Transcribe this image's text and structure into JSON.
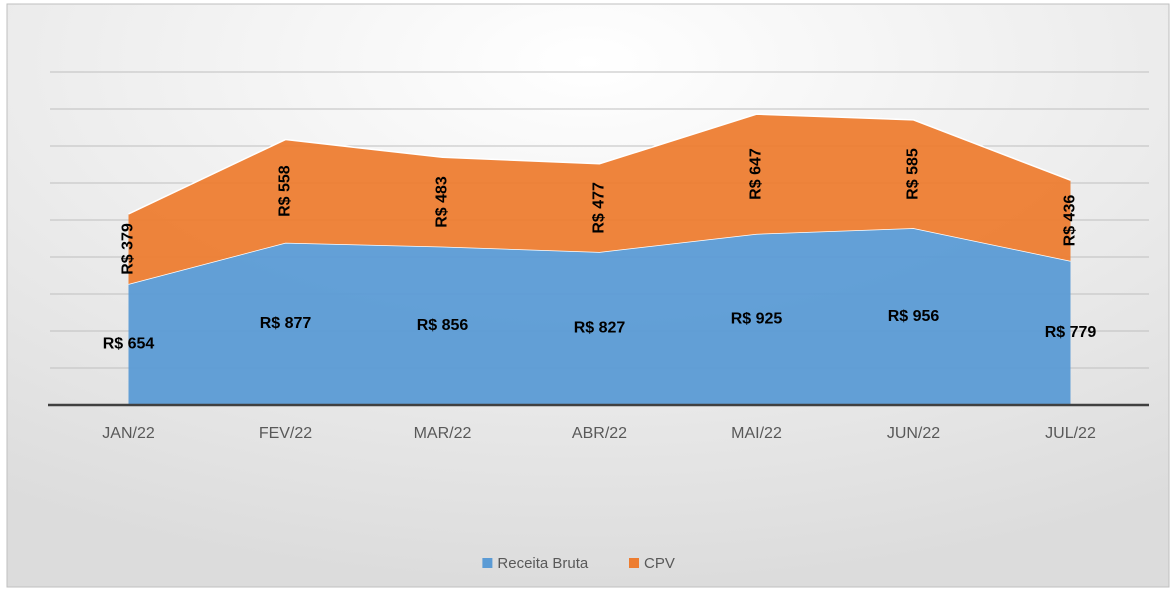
{
  "chart_data": {
    "type": "stacked_area",
    "categories": [
      "JAN/22",
      "FEV/22",
      "MAR/22",
      "ABR/22",
      "MAI/22",
      "JUN/22",
      "JUL/22"
    ],
    "series": [
      {
        "name": "Receita Bruta",
        "color": "#5b9bd5",
        "values": [
          654,
          877,
          856,
          827,
          925,
          956,
          779
        ],
        "value_labels": [
          "R$ 654",
          "R$ 877",
          "R$ 856",
          "R$ 827",
          "R$ 925",
          "R$ 956",
          "R$ 779"
        ]
      },
      {
        "name": "CPV",
        "color": "#ed7d31",
        "values": [
          379,
          558,
          483,
          477,
          647,
          585,
          436
        ],
        "value_labels": [
          "R$ 379",
          "R$ 558",
          "R$ 483",
          "R$ 477",
          "R$ 647",
          "R$ 585",
          "R$ 436"
        ]
      }
    ],
    "ylim": [
      0,
      1800
    ],
    "yticks": [
      0,
      200,
      400,
      600,
      800,
      1000,
      1200,
      1400,
      1600,
      1800
    ],
    "grid": true,
    "legend": "bottom"
  }
}
